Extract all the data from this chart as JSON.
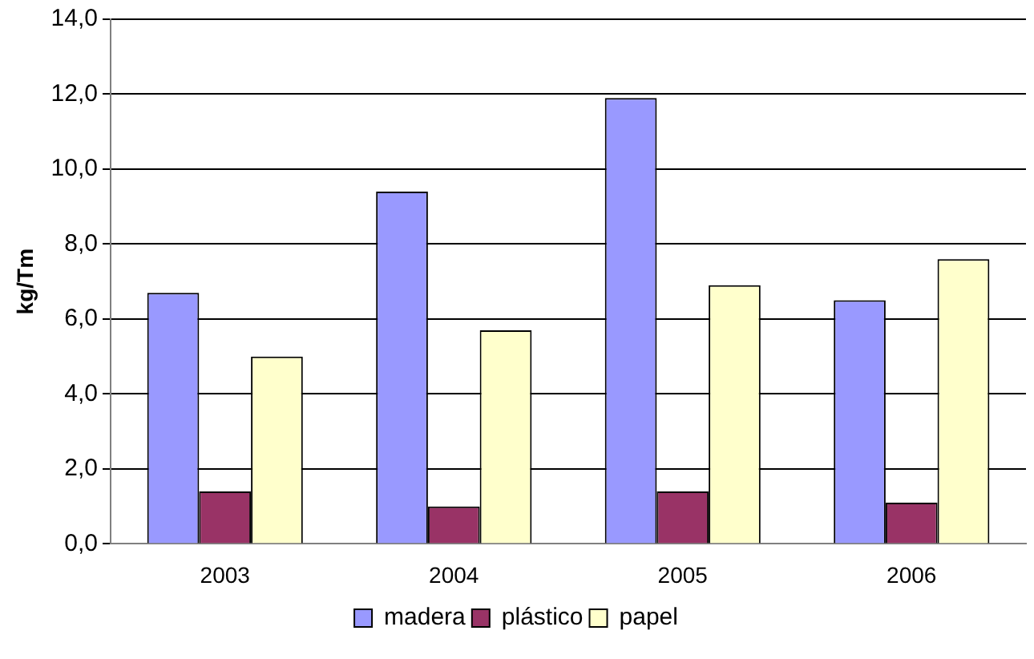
{
  "chart_data": {
    "type": "bar",
    "ylabel": "kg/Tm",
    "categories": [
      "2003",
      "2004",
      "2005",
      "2006"
    ],
    "series": [
      {
        "name": "madera",
        "color": "#9999ff",
        "values": [
          6.7,
          9.4,
          11.9,
          6.5
        ]
      },
      {
        "name": "plástico",
        "color": "#993366",
        "values": [
          1.4,
          1.0,
          1.4,
          1.1
        ]
      },
      {
        "name": "papel",
        "color": "#ffffcc",
        "values": [
          5.0,
          5.7,
          6.9,
          7.6
        ]
      }
    ],
    "ylim": [
      0,
      14
    ],
    "yticks": [
      {
        "value": 0,
        "label": "0,0"
      },
      {
        "value": 2,
        "label": "2,0"
      },
      {
        "value": 4,
        "label": "4,0"
      },
      {
        "value": 6,
        "label": "6,0"
      },
      {
        "value": 8,
        "label": "8,0"
      },
      {
        "value": 10,
        "label": "10,0"
      },
      {
        "value": 12,
        "label": "12,0"
      },
      {
        "value": 14,
        "label": "14,0"
      }
    ],
    "grid": "y",
    "legend": "bottom"
  }
}
